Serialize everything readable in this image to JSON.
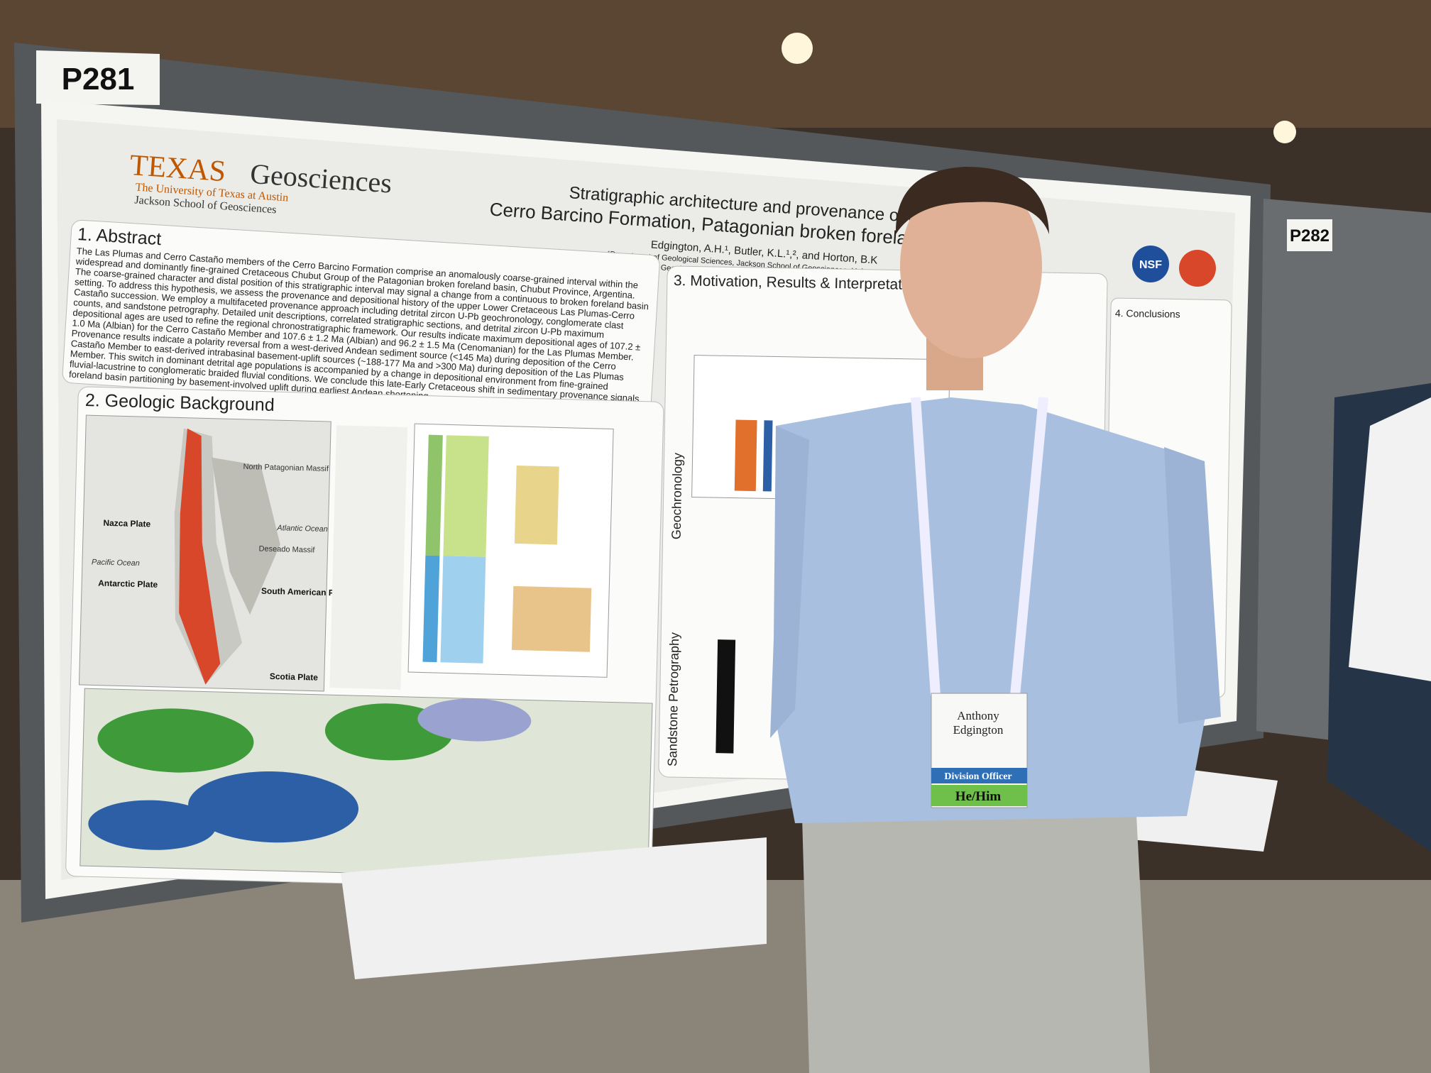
{
  "booths": {
    "left": "P281",
    "right": "P282"
  },
  "poster": {
    "logo": {
      "wordmark": "TEXAS",
      "name": "Geosciences",
      "university": "The University of Texas at Austin",
      "school": "Jackson School of Geosciences"
    },
    "title": [
      "Stratigraphic architecture and provenance of t",
      "Cerro Barcino Formation, Patagonian broken foreland b"
    ],
    "authors": "Edgington, A.H.¹, Butler, K.L.¹,², and Horton, B.K",
    "affiliations": [
      "¹Department of Geological Sciences, Jackson School of Geosciences, University of Texa",
      "²Institute for Geophysics, Jackson School of Geosciences, University of Texas at Aus"
    ],
    "sections": [
      {
        "heading": "1. Abstract",
        "lines": [
          "The Las Plumas and Cerro Castaño members of the Cerro Barcino Formation comprise an anomalously coarse-grained interval within the",
          "widespread and dominantly fine-grained Cretaceous Chubut Group of the Patagonian broken foreland basin, Chubut Province, Argentina.",
          "The coarse-grained character and distal position of this stratigraphic interval may signal a change from a continuous to broken foreland basin",
          "setting. To address this hypothesis, we assess the provenance and depositional history of the upper Lower Cretaceous Las Plumas-Cerro",
          "Castaño succession. We employ a multifaceted provenance approach including detrital zircon U-Pb geochronology, conglomerate clast",
          "counts, and sandstone petrography. Detailed unit descriptions, correlated stratigraphic sections, and detrital zircon U-Pb maximum",
          "depositional ages are used to refine the regional chronostratigraphic framework. Our results indicate maximum depositional ages of 107.2 ±",
          "1.0 Ma (Albian) for the Cerro Castaño Member and 107.6 ± 1.2 Ma (Albian) and 96.2 ± 1.5 Ma (Cenomanian) for the Las Plumas Member.",
          "Provenance results indicate a polarity reversal from a west-derived Andean sediment source (<145 Ma) during deposition of the Cerro",
          "Castaño Member to east-derived intrabasinal basement-uplift sources (~188-177 Ma and >300 Ma) during deposition of the Las Plumas",
          "Member. This switch in dominant detrital age populations is accompanied by a change in depositional environment from fine-grained",
          "fluvial-lacustrine to conglomeratic braided fluvial conditions. We conclude this late-Early Cretaceous shift in sedimentary provenance signals",
          "foreland basin partitioning by basement-involved uplift during earliest Andean shortening."
        ]
      },
      {
        "heading": "2. Geologic Background"
      },
      {
        "heading": "3. Motivation, Results & Interpretations"
      },
      {
        "heading": "4. Conclusions"
      }
    ],
    "map_labels": [
      "Nazca Plate",
      "Antarctic Plate",
      "South American Plate",
      "Scotia Plate",
      "Pacific Ocean",
      "Atlantic Ocean",
      "Deseado Massif",
      "North Patagonian Massif"
    ],
    "side_labels": [
      "Geochronology",
      "Sandstone Petrography"
    ],
    "logos": [
      "NSF"
    ]
  },
  "badge": {
    "name": [
      "Anthony",
      "Edgington"
    ],
    "role": "Division Officer",
    "pronouns": "He/Him"
  }
}
